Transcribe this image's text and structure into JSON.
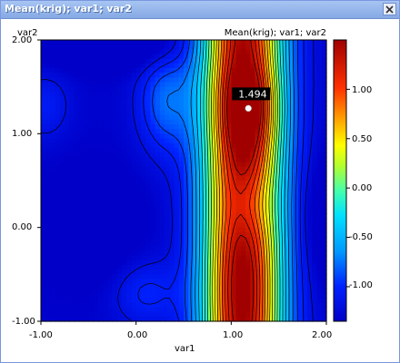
{
  "window": {
    "title": "Mean(krig); var1; var2"
  },
  "plot": {
    "title": "Mean(krig); var1; var2",
    "ylabel": "var2",
    "xlabel": "var1",
    "marker_label": "1.494"
  },
  "chart_data": {
    "type": "heatmap",
    "title": "Mean(krig); var1; var2",
    "xlabel": "var1",
    "ylabel": "var2",
    "xlim": [
      -1.0,
      2.0
    ],
    "ylim": [
      -1.0,
      2.0
    ],
    "x_ticks": [
      "-1.00",
      "0.00",
      "1.00",
      "2.00"
    ],
    "y_ticks": [
      "2.00",
      "1.00",
      "0.00",
      "-1.00"
    ],
    "colorbar_ticks": [
      "1.00",
      "0.50",
      "0.00",
      "-0.50",
      "-1.00"
    ],
    "colorbar_range": [
      -1.35,
      1.5
    ],
    "maximum": {
      "x": 1.18,
      "y": 1.27,
      "value": 1.494,
      "label": "1.494"
    },
    "grid": false,
    "legend": "right colorbar"
  },
  "colors": {
    "window_border": "#7a96df",
    "title_text": "#ffffff",
    "marker": "#ffffff",
    "marker_label_bg": "#000000"
  },
  "icons": {
    "close": "close-icon"
  }
}
